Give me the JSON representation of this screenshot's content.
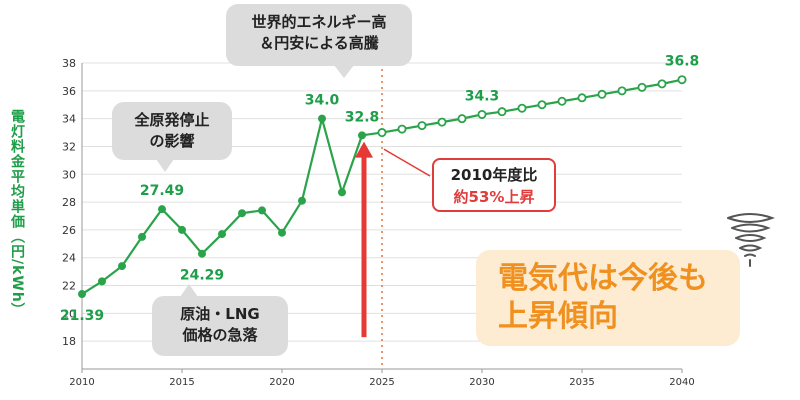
{
  "chart_data": {
    "type": "line",
    "ylabel": "電灯料金平均単価（円/kWh）",
    "xlim": [
      2010,
      2040
    ],
    "ylim": [
      16,
      38
    ],
    "x_ticks": [
      2010,
      2015,
      2020,
      2025,
      2030,
      2035,
      2040
    ],
    "y_ticks": [
      18,
      20,
      22,
      24,
      26,
      28,
      30,
      32,
      34,
      36,
      38
    ],
    "grid": "horizontal",
    "colors": {
      "line": "#2aa34a",
      "label": "#1f9e4a",
      "grid": "#e0e0e0",
      "divider": "#e8743b",
      "arrow": "#e53935"
    },
    "series": [
      {
        "style": "solid-filled-markers",
        "x": [
          2010,
          2011,
          2012,
          2013,
          2014,
          2015,
          2016,
          2017,
          2018,
          2019,
          2020,
          2021,
          2022,
          2023,
          2024
        ],
        "values": [
          21.39,
          22.3,
          23.4,
          25.5,
          27.49,
          26.0,
          24.29,
          25.7,
          27.2,
          27.4,
          25.8,
          28.1,
          34.0,
          28.7,
          32.8
        ]
      },
      {
        "style": "projection-open-markers",
        "x": [
          2024,
          2025,
          2026,
          2027,
          2028,
          2029,
          2030,
          2031,
          2032,
          2033,
          2034,
          2035,
          2036,
          2037,
          2038,
          2039,
          2040
        ],
        "values": [
          32.8,
          33.0,
          33.25,
          33.5,
          33.75,
          34.0,
          34.3,
          34.5,
          34.75,
          35.0,
          35.25,
          35.5,
          35.75,
          36.0,
          36.25,
          36.5,
          36.8
        ]
      }
    ],
    "data_labels": [
      {
        "x": 2010,
        "y": 21.39,
        "text": "21.39",
        "pos": "below"
      },
      {
        "x": 2014,
        "y": 27.49,
        "text": "27.49",
        "pos": "above"
      },
      {
        "x": 2016,
        "y": 24.29,
        "text": "24.29",
        "pos": "below"
      },
      {
        "x": 2022,
        "y": 34.0,
        "text": "34.0",
        "pos": "above"
      },
      {
        "x": 2024,
        "y": 32.8,
        "text": "32.8",
        "pos": "above"
      },
      {
        "x": 2030,
        "y": 34.3,
        "text": "34.3",
        "pos": "above"
      },
      {
        "x": 2040,
        "y": 36.8,
        "text": "36.8",
        "pos": "above"
      }
    ],
    "divider_x": 2025,
    "arrow": {
      "x": 2024,
      "from": 18,
      "to": 32.2
    }
  },
  "annotations": {
    "global_surge": [
      "世界的エネルギー高",
      "＆円安による高騰"
    ],
    "nuclear_stop": [
      "全原発停止",
      "の影響"
    ],
    "oil_lng_fall": [
      "原油・LNG",
      "価格の急落"
    ],
    "vs_2010_title": "2010年度比",
    "vs_2010_value": "約53%上昇",
    "trend": [
      "電気代は今後も",
      "上昇傾向"
    ]
  }
}
